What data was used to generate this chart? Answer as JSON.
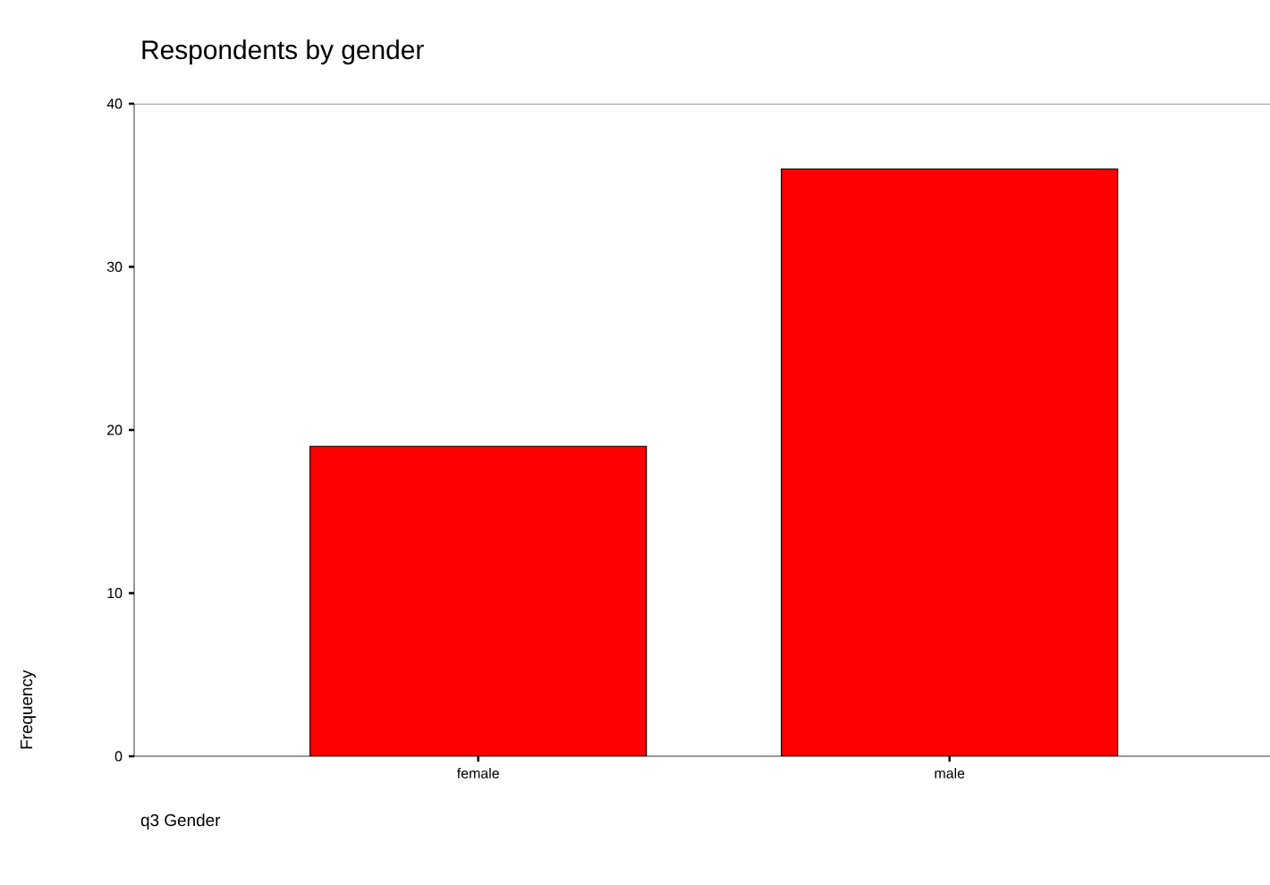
{
  "chart_data": {
    "type": "bar",
    "title": "Respondents by gender",
    "xlabel": "q3 Gender",
    "ylabel": "Frequency",
    "categories": [
      "female",
      "male"
    ],
    "values": [
      19,
      36
    ],
    "color": "#ff0000",
    "ylim": [
      0,
      40
    ],
    "yticks": [
      0,
      10,
      20,
      30,
      40
    ],
    "grid": false
  }
}
